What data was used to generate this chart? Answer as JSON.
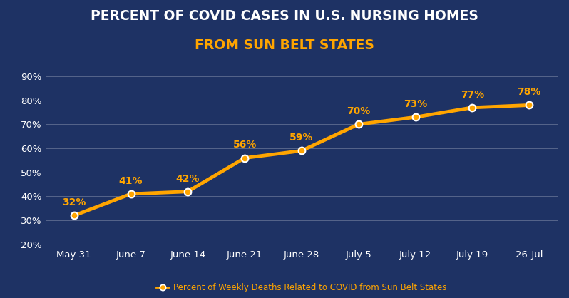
{
  "title_line1": "PERCENT OF COVID CASES IN U.S. NURSING HOMES",
  "title_line2": "FROM SUN BELT STATES",
  "title_color": "#FFFFFF",
  "subtitle_color": "#FFA500",
  "background_color": "#1e3264",
  "plot_bg_color": "#1e3264",
  "x_labels": [
    "May 31",
    "June 7",
    "June 14",
    "June 21",
    "June 28",
    "July 5",
    "July 12",
    "July 19",
    "26-Jul"
  ],
  "y_values": [
    32,
    41,
    42,
    56,
    59,
    70,
    73,
    77,
    78
  ],
  "line_color": "#FFA500",
  "marker_color": "#FFA500",
  "marker_edge_color": "#FFFFFF",
  "label_color": "#FFA500",
  "tick_color": "#FFFFFF",
  "grid_color": "#FFFFFF",
  "ylim_min": 20,
  "ylim_max": 92,
  "yticks": [
    20,
    30,
    40,
    50,
    60,
    70,
    80,
    90
  ],
  "legend_label": "Percent of Weekly Deaths Related to COVID from Sun Belt States",
  "legend_color": "#FFA500",
  "title_fontsize": 13.5,
  "subtitle_fontsize": 13.5,
  "annotation_fontsize": 10,
  "tick_fontsize": 9.5,
  "legend_fontsize": 8.5,
  "linewidth": 3.5,
  "markersize": 7
}
